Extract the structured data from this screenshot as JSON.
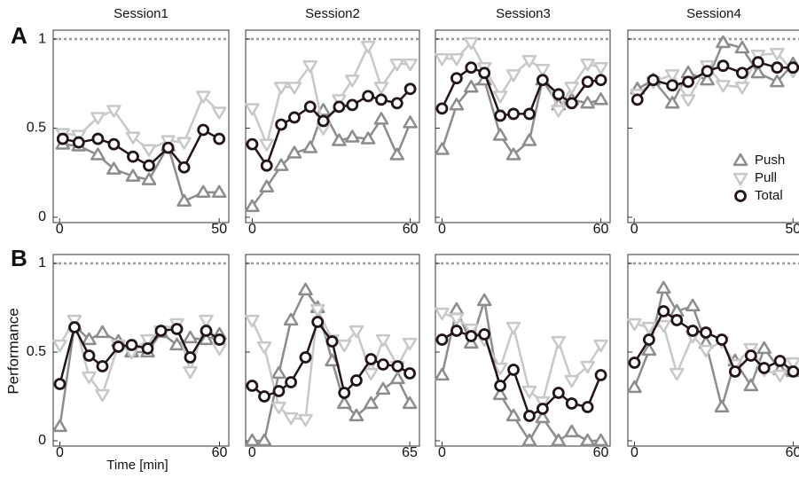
{
  "column_titles": [
    "Session1",
    "Session2",
    "Session3",
    "Session4"
  ],
  "row_labels": [
    "A",
    "B"
  ],
  "ylabel": "Performance",
  "xlabel": "Time [min]",
  "chart_data": [
    {
      "type": "line",
      "ylim": [
        -0.03,
        1.05
      ],
      "yticks": [
        0,
        0.5,
        1
      ],
      "ref_line": 1,
      "xlim": [
        -2,
        53
      ],
      "xticks": [
        0,
        50
      ],
      "x": [
        1,
        6,
        12,
        17,
        23,
        28,
        34,
        39,
        45,
        50
      ],
      "series": [
        {
          "name": "Push",
          "color": "#8c8c8c",
          "marker": "triangle-up",
          "values": [
            0.41,
            0.4,
            0.35,
            0.27,
            0.23,
            0.21,
            0.4,
            0.09,
            0.14,
            0.14
          ]
        },
        {
          "name": "Pull",
          "color": "#c8c8c8",
          "marker": "triangle-down",
          "values": [
            0.47,
            0.46,
            0.56,
            0.6,
            0.45,
            0.38,
            0.43,
            0.42,
            0.68,
            0.59
          ]
        },
        {
          "name": "Total",
          "color": "#231416",
          "marker": "circle",
          "values": [
            0.44,
            0.42,
            0.44,
            0.41,
            0.34,
            0.29,
            0.39,
            0.28,
            0.49,
            0.44
          ]
        }
      ]
    },
    {
      "type": "line",
      "ylim": [
        -0.03,
        1.05
      ],
      "yticks": [
        0,
        0.5,
        1
      ],
      "ref_line": 1,
      "xlim": [
        -2.5,
        63.5
      ],
      "xticks": [
        0,
        60
      ],
      "x": [
        0,
        5.5,
        11,
        16,
        22,
        27,
        33,
        38,
        44,
        49,
        55,
        60
      ],
      "series": [
        {
          "name": "Push",
          "color": "#8c8c8c",
          "marker": "triangle-up",
          "values": [
            0.06,
            0.17,
            0.29,
            0.36,
            0.39,
            0.6,
            0.43,
            0.45,
            0.44,
            0.55,
            0.35,
            0.53
          ]
        },
        {
          "name": "Pull",
          "color": "#c8c8c8",
          "marker": "triangle-down",
          "values": [
            0.61,
            0.41,
            0.73,
            0.73,
            0.85,
            0.5,
            0.66,
            0.77,
            0.96,
            0.73,
            0.86,
            0.86
          ]
        },
        {
          "name": "Total",
          "color": "#231416",
          "marker": "circle",
          "values": [
            0.41,
            0.29,
            0.52,
            0.56,
            0.62,
            0.54,
            0.62,
            0.63,
            0.68,
            0.66,
            0.64,
            0.72
          ]
        }
      ]
    },
    {
      "type": "line",
      "ylim": [
        -0.03,
        1.05
      ],
      "yticks": [
        0,
        0.5,
        1
      ],
      "ref_line": 1,
      "xlim": [
        -2.5,
        63.5
      ],
      "xticks": [
        0,
        60
      ],
      "x": [
        0,
        5.5,
        11,
        16,
        22,
        27,
        33,
        38,
        44,
        49,
        55,
        60
      ],
      "series": [
        {
          "name": "Push",
          "color": "#8c8c8c",
          "marker": "triangle-up",
          "values": [
            0.38,
            0.63,
            0.73,
            0.77,
            0.46,
            0.35,
            0.43,
            0.77,
            0.63,
            0.66,
            0.64,
            0.66
          ]
        },
        {
          "name": "Pull",
          "color": "#c8c8c8",
          "marker": "triangle-down",
          "values": [
            0.89,
            0.89,
            0.98,
            0.84,
            0.68,
            0.8,
            0.88,
            0.83,
            0.6,
            0.73,
            0.86,
            0.84
          ]
        },
        {
          "name": "Total",
          "color": "#231416",
          "marker": "circle",
          "values": [
            0.61,
            0.78,
            0.84,
            0.81,
            0.57,
            0.58,
            0.58,
            0.77,
            0.69,
            0.64,
            0.76,
            0.77
          ]
        }
      ]
    },
    {
      "type": "line",
      "ylim": [
        -0.03,
        1.05
      ],
      "yticks": [
        0,
        0.5,
        1
      ],
      "ref_line": 1,
      "xlim": [
        -2,
        53
      ],
      "xticks": [
        0,
        50
      ],
      "legend": "lower right",
      "x": [
        1,
        6,
        12,
        17,
        23,
        28,
        34,
        39,
        45,
        50
      ],
      "series": [
        {
          "name": "Push",
          "color": "#8c8c8c",
          "marker": "triangle-up",
          "values": [
            0.72,
            0.77,
            0.64,
            0.81,
            0.77,
            0.98,
            0.95,
            0.81,
            0.76,
            0.86
          ]
        },
        {
          "name": "Pull",
          "color": "#c8c8c8",
          "marker": "triangle-down",
          "values": [
            0.69,
            0.76,
            0.8,
            0.66,
            0.85,
            0.74,
            0.73,
            0.91,
            0.92,
            0.82
          ]
        },
        {
          "name": "Total",
          "color": "#231416",
          "marker": "circle",
          "values": [
            0.66,
            0.77,
            0.74,
            0.76,
            0.82,
            0.85,
            0.81,
            0.87,
            0.84,
            0.84
          ]
        }
      ]
    },
    {
      "type": "line",
      "ylim": [
        -0.03,
        1.05
      ],
      "yticks": [
        0,
        0.5,
        1
      ],
      "ref_line": 1,
      "xlim": [
        -2.5,
        63.5
      ],
      "xticks": [
        0,
        60
      ],
      "x": [
        0,
        5.5,
        11,
        16,
        22,
        27,
        33,
        38,
        44,
        49,
        55,
        60
      ],
      "series": [
        {
          "name": "Push",
          "color": "#8c8c8c",
          "marker": "triangle-up",
          "values": [
            0.08,
            0.65,
            0.57,
            0.61,
            0.56,
            0.5,
            0.5,
            0.61,
            0.54,
            0.58,
            0.57,
            0.6
          ]
        },
        {
          "name": "Pull",
          "color": "#c8c8c8",
          "marker": "triangle-down",
          "values": [
            0.54,
            0.68,
            0.36,
            0.26,
            0.54,
            0.5,
            0.57,
            0.62,
            0.66,
            0.39,
            0.68,
            0.52
          ]
        },
        {
          "name": "Total",
          "color": "#231416",
          "marker": "circle",
          "values": [
            0.32,
            0.64,
            0.48,
            0.42,
            0.53,
            0.54,
            0.52,
            0.62,
            0.63,
            0.47,
            0.62,
            0.57
          ]
        }
      ]
    },
    {
      "type": "line",
      "ylim": [
        -0.03,
        1.05
      ],
      "yticks": [
        0,
        0.5,
        1
      ],
      "ref_line": 1,
      "xlim": [
        -2.7,
        69
      ],
      "xticks": [
        0,
        65
      ],
      "x": [
        0,
        5,
        11,
        16,
        22,
        27,
        33,
        38,
        43,
        49,
        54,
        60,
        65
      ],
      "series": [
        {
          "name": "Push",
          "color": "#8c8c8c",
          "marker": "triangle-up",
          "values": [
            0.0,
            0.0,
            0.38,
            0.68,
            0.85,
            0.75,
            0.45,
            0.21,
            0.14,
            0.21,
            0.29,
            0.35,
            0.21
          ]
        },
        {
          "name": "Pull",
          "color": "#c8c8c8",
          "marker": "triangle-down",
          "values": [
            0.68,
            0.53,
            0.19,
            0.13,
            0.12,
            0.74,
            0.57,
            0.54,
            0.62,
            0.38,
            0.57,
            0.42,
            0.55
          ]
        },
        {
          "name": "Total",
          "color": "#231416",
          "marker": "circle",
          "values": [
            0.31,
            0.25,
            0.28,
            0.33,
            0.47,
            0.67,
            0.56,
            0.27,
            0.34,
            0.46,
            0.43,
            0.42,
            0.38
          ]
        }
      ]
    },
    {
      "type": "line",
      "ylim": [
        -0.03,
        1.05
      ],
      "yticks": [
        0,
        0.5,
        1
      ],
      "ref_line": 1,
      "xlim": [
        -2.5,
        63.5
      ],
      "xticks": [
        0,
        60
      ],
      "x": [
        0,
        5.5,
        11,
        16,
        22,
        27,
        33,
        38,
        44,
        49,
        55,
        60
      ],
      "series": [
        {
          "name": "Push",
          "color": "#8c8c8c",
          "marker": "triangle-up",
          "values": [
            0.37,
            0.74,
            0.55,
            0.79,
            0.26,
            0.14,
            0.0,
            0.13,
            0.0,
            0.05,
            0.0,
            0.0
          ]
        },
        {
          "name": "Pull",
          "color": "#c8c8c8",
          "marker": "triangle-down",
          "values": [
            0.72,
            0.69,
            0.63,
            0.57,
            0.41,
            0.64,
            0.28,
            0.22,
            0.56,
            0.34,
            0.42,
            0.54
          ]
        },
        {
          "name": "Total",
          "color": "#231416",
          "marker": "circle",
          "values": [
            0.57,
            0.62,
            0.59,
            0.6,
            0.31,
            0.4,
            0.14,
            0.18,
            0.27,
            0.21,
            0.19,
            0.37
          ]
        }
      ]
    },
    {
      "type": "line",
      "ylim": [
        -0.03,
        1.05
      ],
      "yticks": [
        0,
        0.5,
        1
      ],
      "ref_line": 1,
      "xlim": [
        -2.5,
        63.5
      ],
      "xticks": [
        0,
        60
      ],
      "x": [
        0,
        5.5,
        11,
        16,
        22,
        27,
        33,
        38,
        44,
        49,
        55,
        60
      ],
      "series": [
        {
          "name": "Push",
          "color": "#8c8c8c",
          "marker": "triangle-up",
          "values": [
            0.3,
            0.51,
            0.86,
            0.73,
            0.76,
            0.55,
            0.19,
            0.45,
            0.31,
            0.52,
            0.4,
            0.39
          ]
        },
        {
          "name": "Pull",
          "color": "#c8c8c8",
          "marker": "triangle-down",
          "values": [
            0.66,
            0.64,
            0.65,
            0.38,
            0.59,
            0.51,
            0.56,
            0.43,
            0.52,
            0.4,
            0.37,
            0.44
          ]
        },
        {
          "name": "Total",
          "color": "#231416",
          "marker": "circle",
          "values": [
            0.44,
            0.57,
            0.73,
            0.68,
            0.62,
            0.61,
            0.57,
            0.39,
            0.48,
            0.41,
            0.45,
            0.39
          ]
        }
      ]
    }
  ]
}
